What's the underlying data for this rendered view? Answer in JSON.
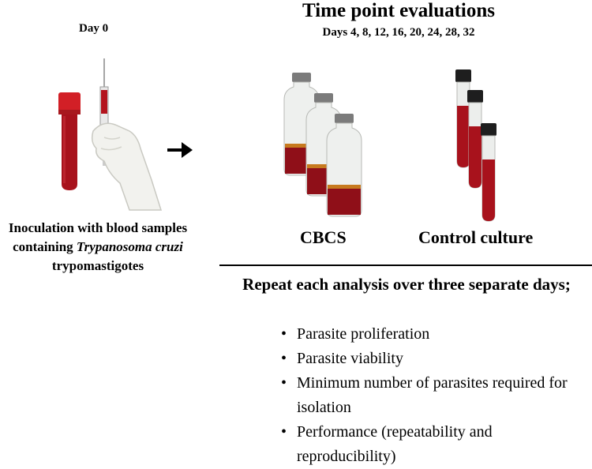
{
  "left": {
    "day_label": "Day 0",
    "caption_line1": "Inoculation with blood samples",
    "caption_line2_prefix": "containing ",
    "caption_line2_italic": "Trypanosoma cruzi",
    "caption_line3": "trypomastigotes"
  },
  "right": {
    "title": "Time point evaluations",
    "days": "Days 4, 8, 12, 16, 20, 24, 28, 32",
    "group_cbcs": "CBCS",
    "group_control": "Control culture",
    "repeat_heading": "Repeat each analysis over three separate days;",
    "bullets": [
      "Parasite proliferation",
      "Parasite viability",
      "Minimum number of parasites required for isolation",
      "Performance (repeatability and reproducibility)"
    ]
  },
  "colors": {
    "blood": "#a8121c",
    "blood_dark": "#6e0a12",
    "cap_red": "#d21f26",
    "cap_dark": "#2a2a2a",
    "glove": "#f2f2ee"
  },
  "icons": [
    "blood-tube-icon",
    "syringe-icon",
    "gloved-hand-icon",
    "arrow-right-icon",
    "culture-vial-icon",
    "culture-tube-icon"
  ]
}
